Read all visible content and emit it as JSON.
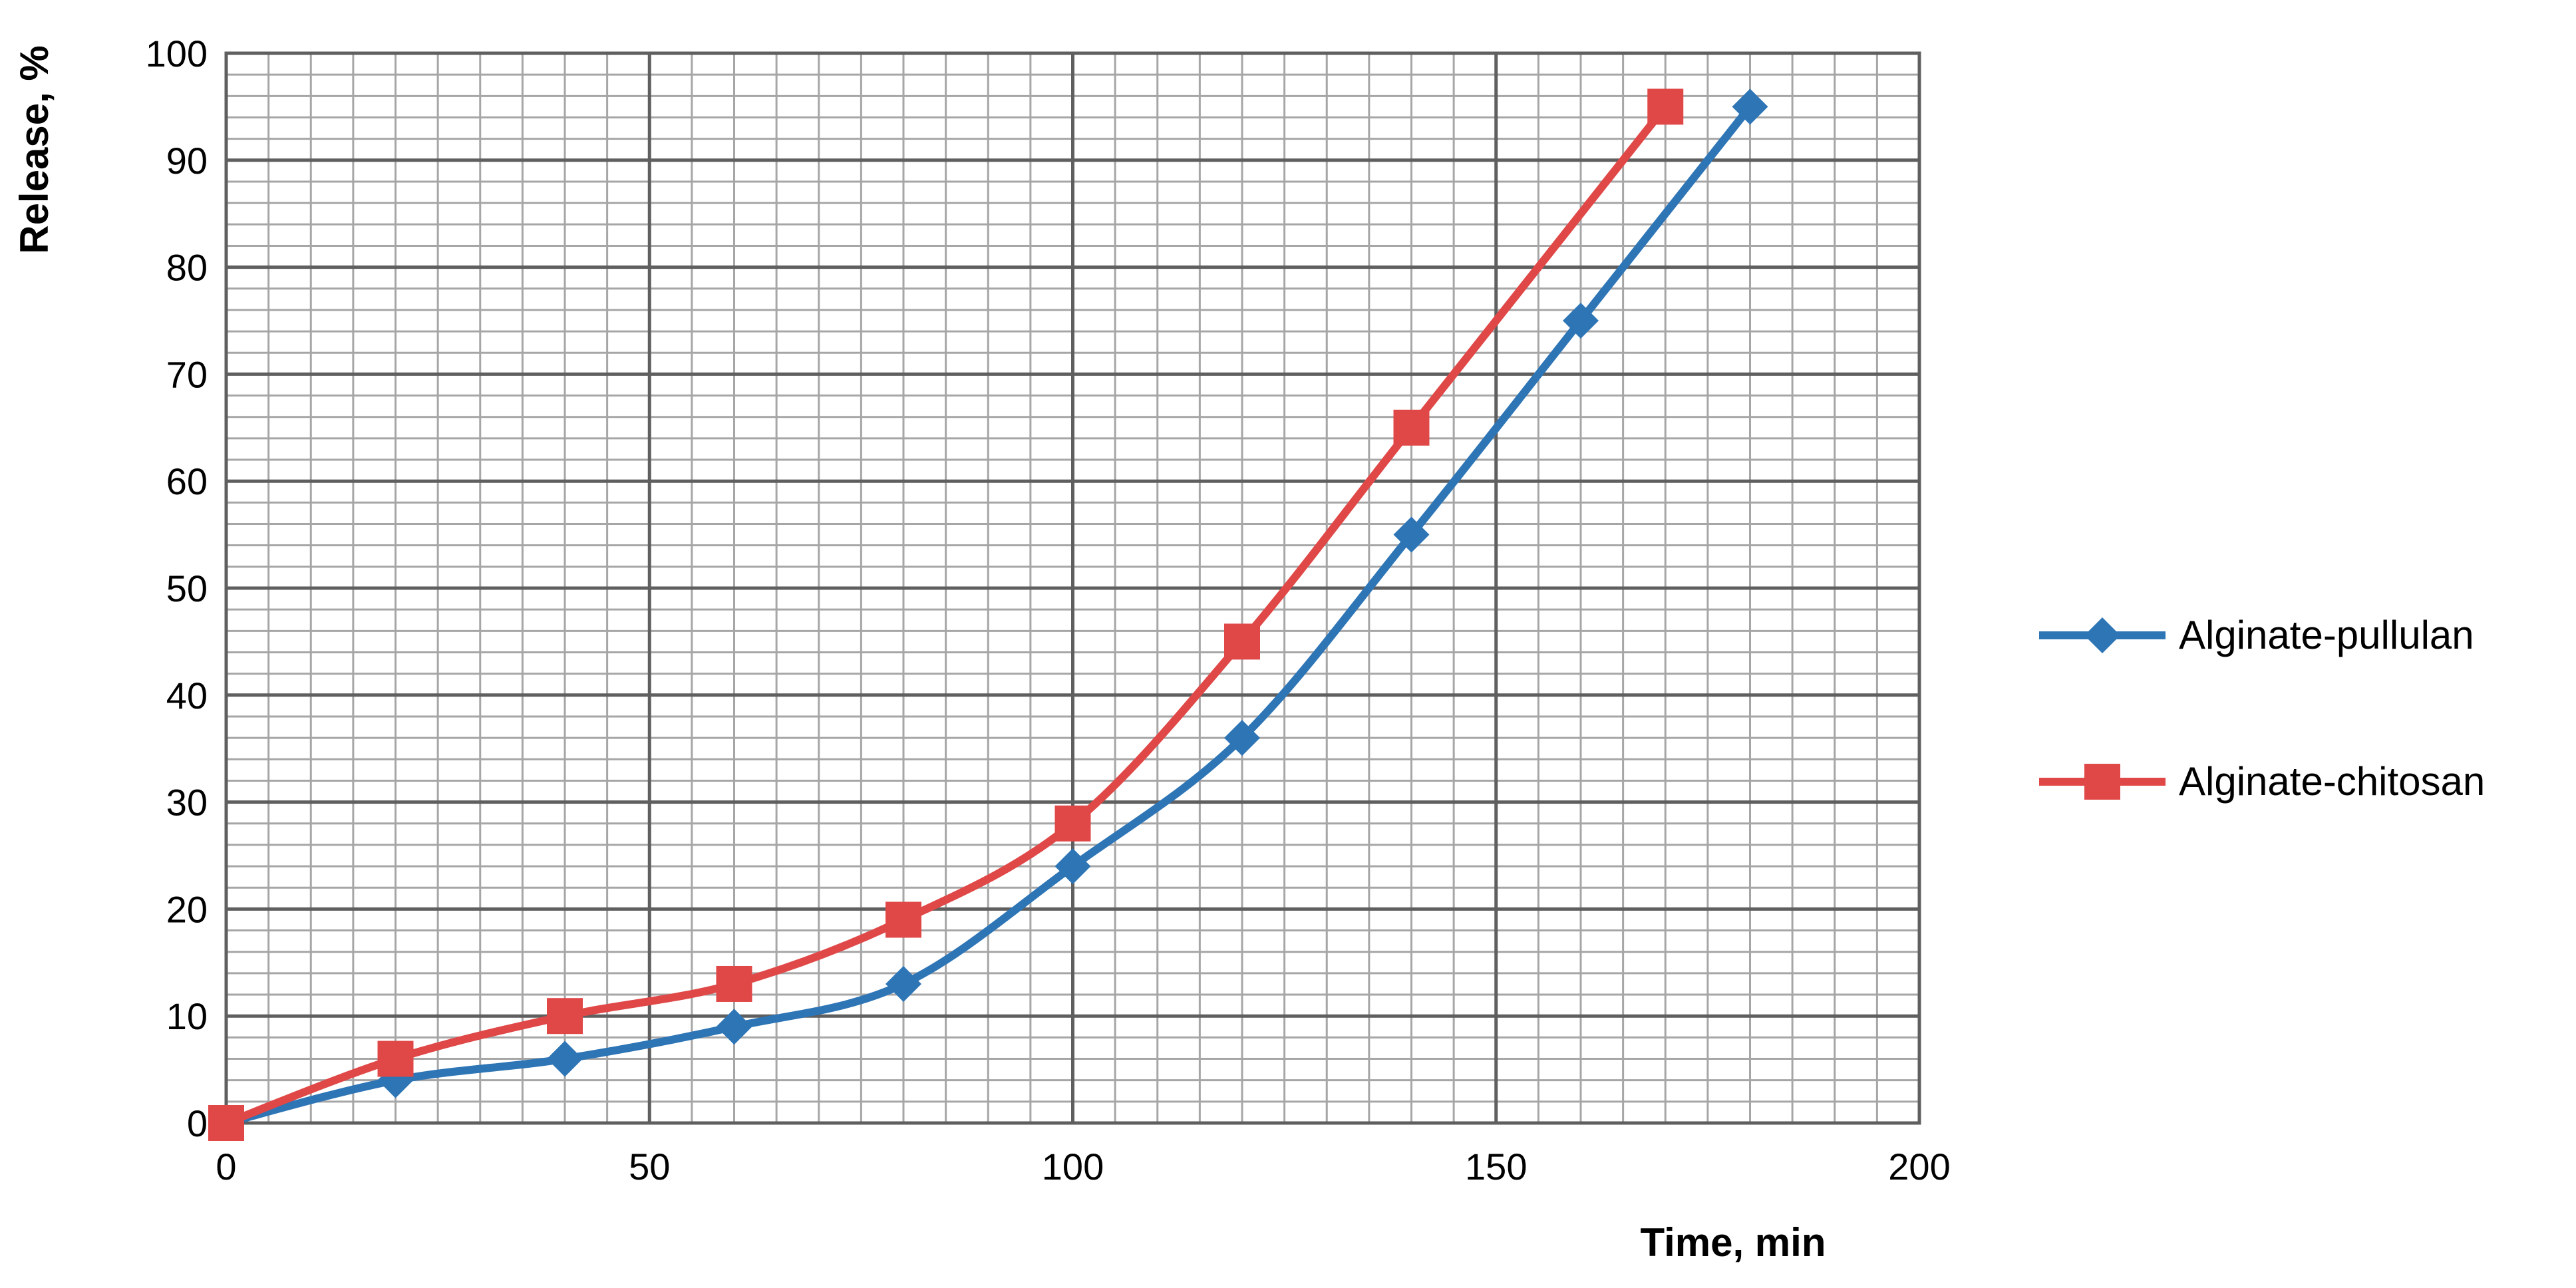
{
  "chart_data": {
    "type": "line",
    "xlabel": "Time, min",
    "ylabel": "Release, %",
    "xlim": [
      0,
      200
    ],
    "ylim": [
      0,
      100
    ],
    "x_ticks": [
      0,
      50,
      100,
      150,
      200
    ],
    "y_ticks": [
      0,
      10,
      20,
      30,
      40,
      50,
      60,
      70,
      80,
      90,
      100
    ],
    "x_minor_step": 5,
    "y_minor_step": 2,
    "grid": true,
    "legend_position": "right",
    "series": [
      {
        "name": "Alginate-pullulan",
        "color": "#2e75b6",
        "marker": "diamond",
        "x": [
          0,
          20,
          40,
          60,
          80,
          100,
          120,
          140,
          160,
          180
        ],
        "y": [
          0,
          4,
          6,
          9,
          13,
          24,
          36,
          55,
          75,
          95
        ]
      },
      {
        "name": "Alginate-chitosan",
        "color": "#e04848",
        "marker": "square",
        "x": [
          0,
          20,
          40,
          60,
          80,
          100,
          120,
          140,
          170
        ],
        "y": [
          0,
          6,
          10,
          13,
          19,
          28,
          45,
          65,
          95
        ]
      }
    ]
  }
}
